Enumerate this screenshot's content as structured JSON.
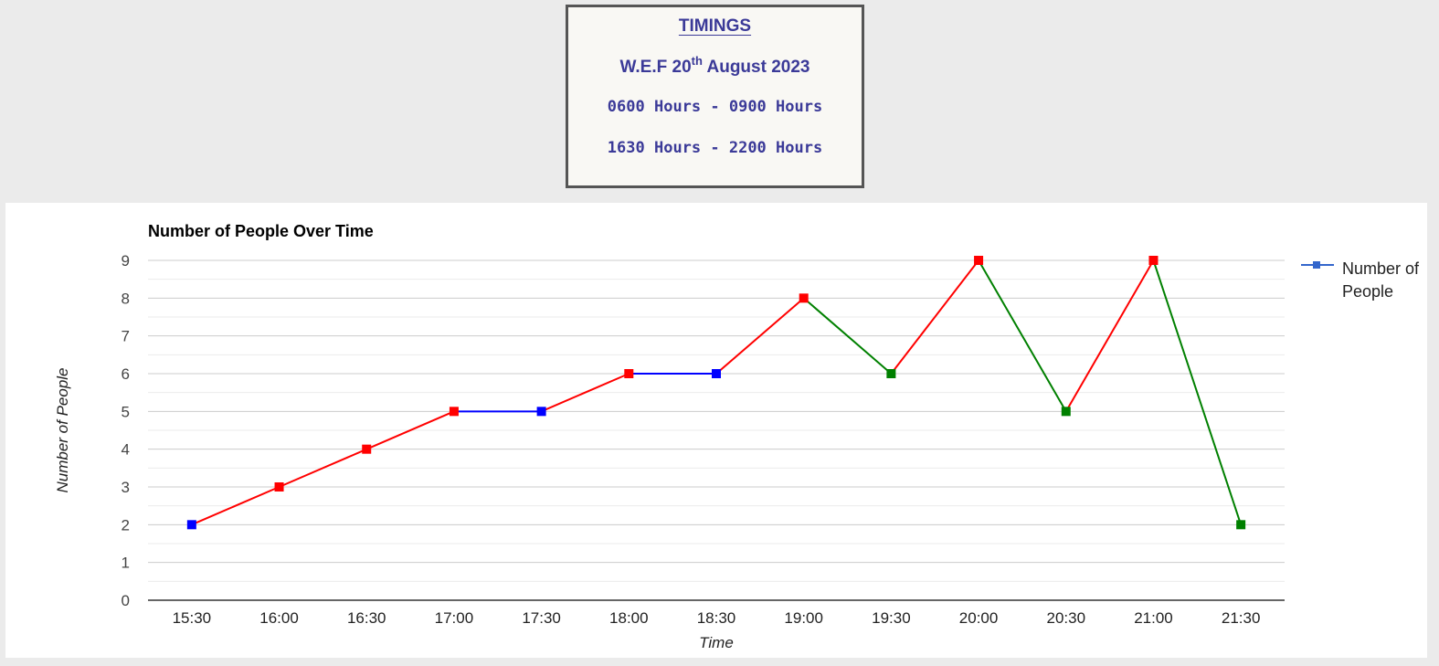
{
  "timings": {
    "title": "TIMINGS",
    "wef_prefix": "W.E.F 20",
    "wef_sup": "th",
    "wef_suffix": " August 2023",
    "slot_1": "0600 Hours - 0900 Hours",
    "slot_2": "1630 Hours - 2200 Hours",
    "color": "#3b3a98"
  },
  "chart_data": {
    "type": "line",
    "title": "Number of People Over Time",
    "xlabel": "Time",
    "ylabel": "Number of People",
    "categories": [
      "15:30",
      "16:00",
      "16:30",
      "17:00",
      "17:30",
      "18:00",
      "18:30",
      "19:00",
      "19:30",
      "20:00",
      "20:30",
      "21:00",
      "21:30"
    ],
    "series": [
      {
        "name": "Number of People",
        "values": [
          2,
          3,
          4,
          5,
          5,
          6,
          6,
          8,
          6,
          9,
          5,
          9,
          2
        ],
        "legend_color": "#3366cc"
      }
    ],
    "point_colors": [
      "blue",
      "red",
      "red",
      "red",
      "blue",
      "red",
      "blue",
      "red",
      "green",
      "red",
      "green",
      "red",
      "green"
    ],
    "segment_rule": "segment takes the color of its ending point: red = increase, blue = no change, green = decrease",
    "colors": {
      "red": "#ff0000",
      "blue": "#0000ff",
      "green": "#008000"
    },
    "ylim": [
      0,
      9
    ],
    "yticks": [
      0,
      1,
      2,
      3,
      4,
      5,
      6,
      7,
      8,
      9
    ],
    "grid": true,
    "legend_position": "right"
  }
}
